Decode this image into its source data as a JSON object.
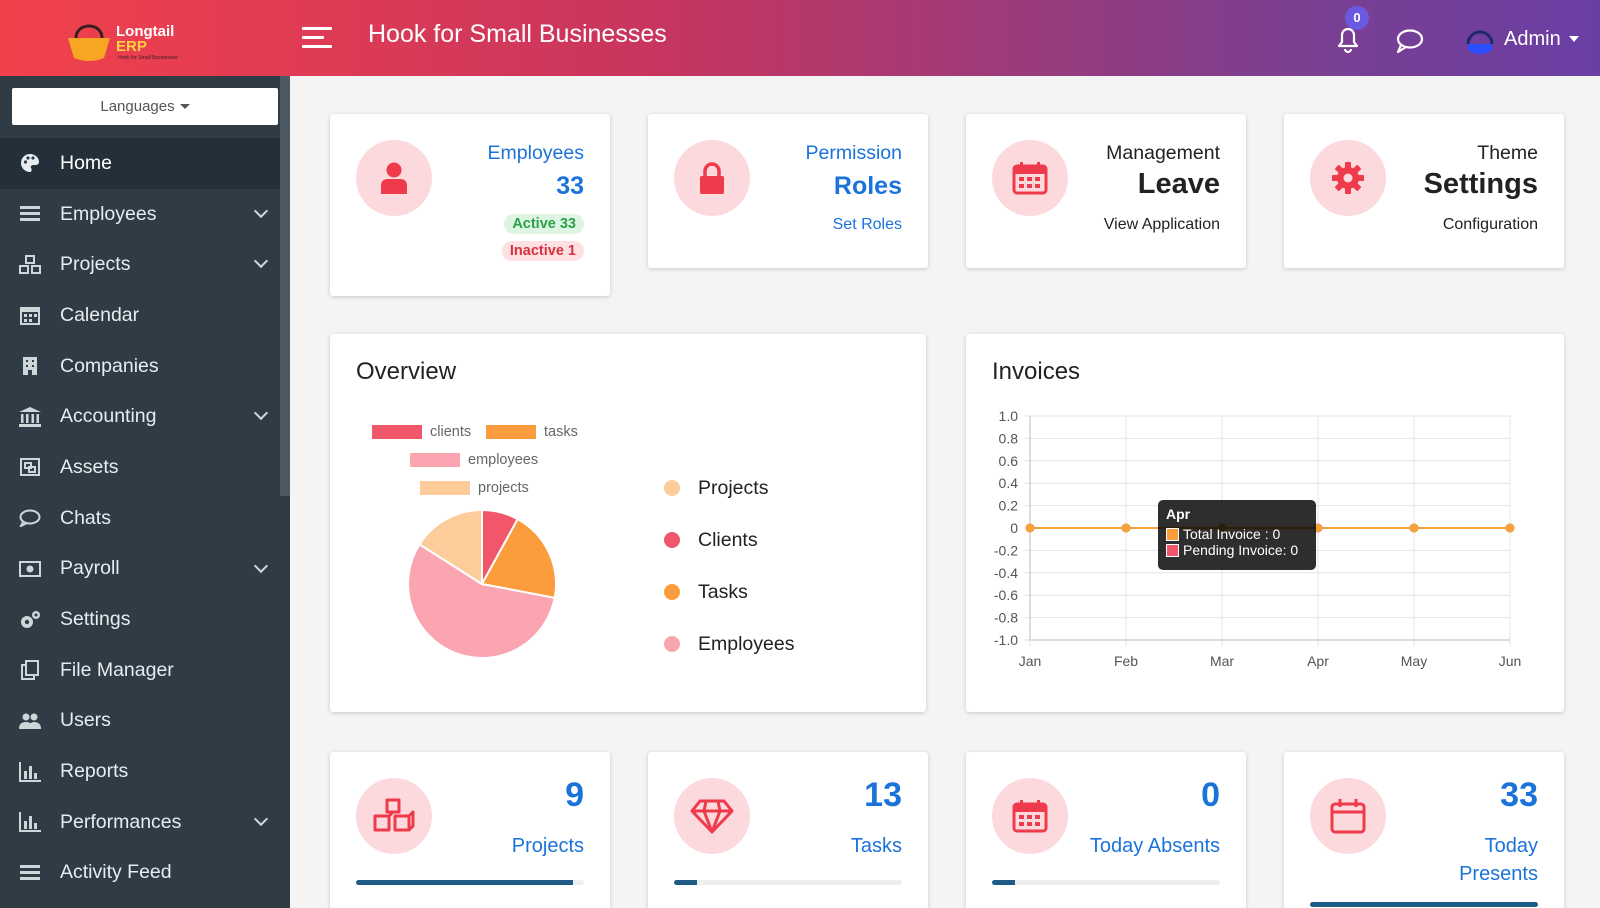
{
  "header": {
    "logo_name": "Longtail",
    "logo_erp": "ERP",
    "logo_tagline": "Hook for Small Businesses",
    "title": "Hook for Small Businesses",
    "notification_count": "0",
    "user_name": "Admin"
  },
  "sidebar": {
    "languages_label": "Languages",
    "items": [
      {
        "label": "Home",
        "icon": "palette-icon",
        "active": true,
        "has_submenu": false
      },
      {
        "label": "Employees",
        "icon": "list-icon",
        "active": false,
        "has_submenu": true
      },
      {
        "label": "Projects",
        "icon": "cubes-icon",
        "active": false,
        "has_submenu": true
      },
      {
        "label": "Calendar",
        "icon": "calendar-icon",
        "active": false,
        "has_submenu": false
      },
      {
        "label": "Companies",
        "icon": "building-icon",
        "active": false,
        "has_submenu": false
      },
      {
        "label": "Accounting",
        "icon": "bank-icon",
        "active": false,
        "has_submenu": true
      },
      {
        "label": "Assets",
        "icon": "object-group-icon",
        "active": false,
        "has_submenu": false
      },
      {
        "label": "Chats",
        "icon": "comment-icon",
        "active": false,
        "has_submenu": false
      },
      {
        "label": "Payroll",
        "icon": "money-icon",
        "active": false,
        "has_submenu": true
      },
      {
        "label": "Settings",
        "icon": "gears-icon",
        "active": false,
        "has_submenu": false
      },
      {
        "label": "File Manager",
        "icon": "files-icon",
        "active": false,
        "has_submenu": false
      },
      {
        "label": "Users",
        "icon": "users-icon",
        "active": false,
        "has_submenu": false
      },
      {
        "label": "Reports",
        "icon": "bar-chart-icon",
        "active": false,
        "has_submenu": false
      },
      {
        "label": "Performances",
        "icon": "bar-chart-icon",
        "active": false,
        "has_submenu": true
      },
      {
        "label": "Activity Feed",
        "icon": "list-icon",
        "active": false,
        "has_submenu": false
      }
    ]
  },
  "top_cards": {
    "employees": {
      "label": "Employees",
      "count": "33",
      "active": "Active 33",
      "inactive": "Inactive 1"
    },
    "permission": {
      "label": "Permission",
      "title": "Roles",
      "link": "Set Roles"
    },
    "leave": {
      "label": "Management",
      "title": "Leave",
      "link": "View Application"
    },
    "theme": {
      "label": "Theme",
      "title": "Settings",
      "link": "Configuration"
    }
  },
  "overview": {
    "title": "Overview",
    "legend_top": [
      "clients",
      "tasks",
      "employees",
      "projects"
    ],
    "side_legend": [
      "Projects",
      "Clients",
      "Tasks",
      "Employees"
    ]
  },
  "invoices": {
    "title": "Invoices",
    "tooltip": {
      "title": "Apr",
      "line1": "Total Invoice : 0",
      "line2": "Pending Invoice: 0"
    }
  },
  "bottom_cards": [
    {
      "value": "9",
      "label": "Projects",
      "icon": "cubes-icon",
      "progress": 0.95
    },
    {
      "value": "13",
      "label": "Tasks",
      "icon": "diamond-icon",
      "progress": 0.1
    },
    {
      "value": "0",
      "label": "Today Absents",
      "icon": "calendar-icon",
      "progress": 0.1
    },
    {
      "value": "33",
      "label_line1": "Today",
      "label_line2": "Presents",
      "icon": "calendar-blank-icon",
      "progress": 1.0
    }
  ],
  "colors": {
    "clients": "#f1566a",
    "tasks": "#fb9d3c",
    "employees": "#fba5b1",
    "projects": "#fdcc9b",
    "accent_blue": "#1a73d9",
    "sidebar_bg": "#2f3c46",
    "line_orange": "#f5a13c"
  },
  "chart_data": [
    {
      "type": "pie",
      "title": "",
      "legend": [
        "clients",
        "tasks",
        "employees",
        "projects"
      ],
      "slices": [
        {
          "name": "clients",
          "value": 8
        },
        {
          "name": "tasks",
          "value": 20
        },
        {
          "name": "employees",
          "value": 56
        },
        {
          "name": "projects",
          "value": 16
        }
      ]
    },
    {
      "type": "line",
      "title": "",
      "categories": [
        "Jan",
        "Feb",
        "Mar",
        "Apr",
        "May",
        "Jun"
      ],
      "series": [
        {
          "name": "Total Invoice",
          "values": [
            0,
            0,
            0,
            0,
            0,
            0
          ]
        },
        {
          "name": "Pending Invoice",
          "values": [
            0,
            0,
            0,
            0,
            0,
            0
          ]
        }
      ],
      "ylim": [
        -1.0,
        1.0
      ],
      "yticks": [
        "1.0",
        "0.8",
        "0.6",
        "0.4",
        "0.2",
        "0",
        "-0.2",
        "-0.4",
        "-0.6",
        "-0.8",
        "-1.0"
      ],
      "grid": true
    }
  ]
}
